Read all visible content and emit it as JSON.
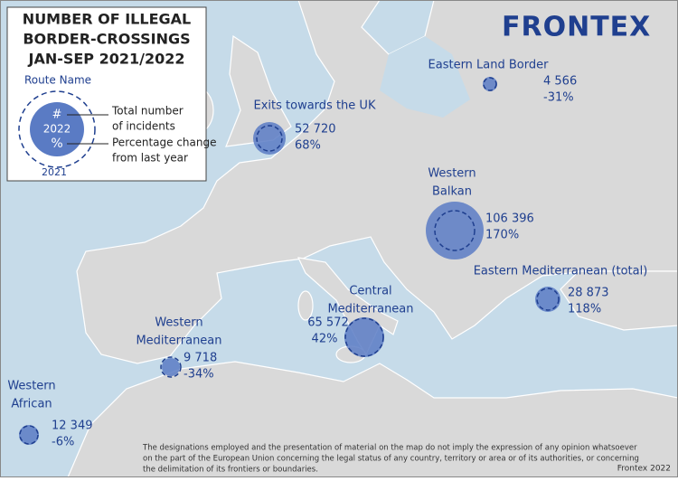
{
  "title": [
    "NUMBER OF ILLEGAL",
    "BORDER-CROSSINGS",
    "JAN-SEP 2021/2022"
  ],
  "logo": "FRONTEX",
  "legend": {
    "route_name": "Route Name",
    "symbol_number": "#",
    "symbol_year": "2022",
    "symbol_percent": "%",
    "previous_year": "2021",
    "total_label": [
      "Total number",
      "of incidents"
    ],
    "change_label": [
      "Percentage change",
      "from last year"
    ]
  },
  "routes": [
    {
      "name": [
        "Exits towards the UK"
      ],
      "incidents": "52 720",
      "change": "68%"
    },
    {
      "name": [
        "Eastern Land Border"
      ],
      "incidents": "4 566",
      "change": "-31%"
    },
    {
      "name": [
        "Western",
        "Balkan"
      ],
      "incidents": "106 396",
      "change": "170%"
    },
    {
      "name": [
        "Eastern Mediterranean (total)"
      ],
      "incidents": "28 873",
      "change": "118%"
    },
    {
      "name": [
        "Central",
        "Mediterranean"
      ],
      "incidents": "65 572",
      "change": "42%"
    },
    {
      "name": [
        "Western",
        "Mediterranean"
      ],
      "incidents": "9 718",
      "change": "-34%"
    },
    {
      "name": [
        "Western",
        "African"
      ],
      "incidents": "12 349",
      "change": "-6%"
    }
  ],
  "disclaimer": [
    "The designations employed and the presentation of material on the map do not imply the expression of any opinion whatsoever",
    "on the part of the European Union concerning the legal status of any country, territory or area or of its authorities, or concerning",
    "the delimitation of its frontiers or boundaries."
  ],
  "credit": "Frontex 2022"
}
